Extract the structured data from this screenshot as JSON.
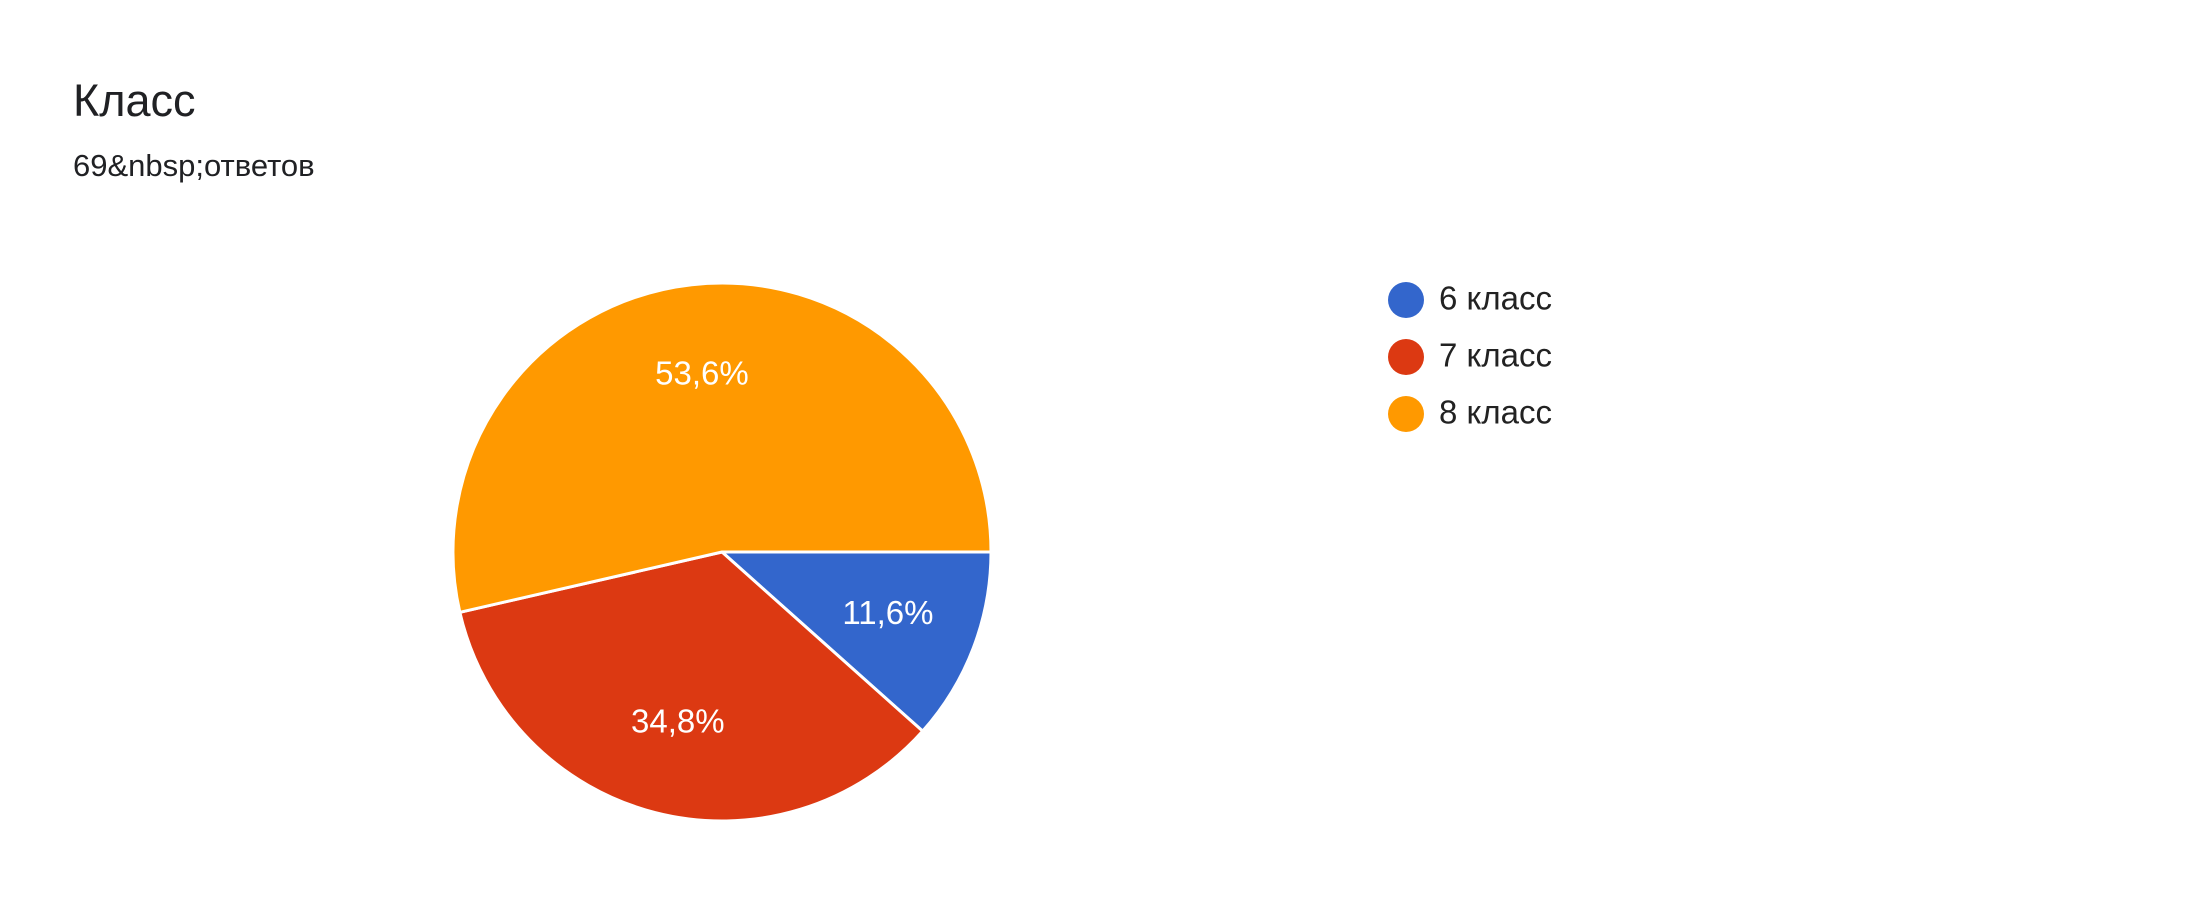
{
  "chart_data": {
    "type": "pie",
    "title": "Класс",
    "subtitle": "69&nbsp;ответов",
    "categories": [
      "6 класс",
      "7 класс",
      "8 класс"
    ],
    "values": [
      11.6,
      34.8,
      53.6
    ],
    "value_labels": [
      "11,6%",
      "34,8%",
      "53,6%"
    ],
    "colors": [
      "#3366cc",
      "#dc3912",
      "#ff9900"
    ],
    "legend": "right"
  }
}
